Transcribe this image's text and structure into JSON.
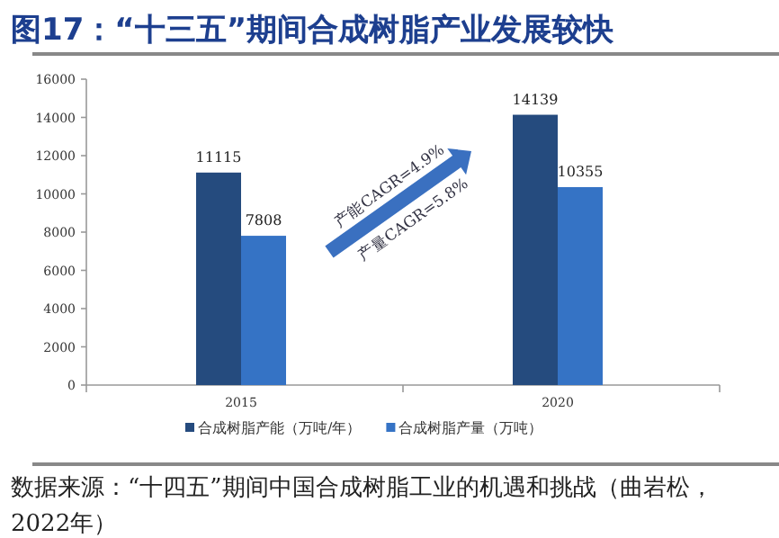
{
  "chart_data": {
    "type": "bar",
    "title": "图17：“十三五”期间合成树脂产业发展较快",
    "categories": [
      "2015",
      "2020"
    ],
    "series": [
      {
        "name": "合成树脂产能（万吨/年）",
        "color": "#254b7e",
        "values": [
          11115,
          14139
        ]
      },
      {
        "name": "合成树脂产量（万吨）",
        "color": "#3573c5",
        "values": [
          7808,
          10355
        ]
      }
    ],
    "ylim": [
      0,
      16000
    ],
    "yticks": [
      0,
      2000,
      4000,
      6000,
      8000,
      10000,
      12000,
      14000,
      16000
    ],
    "data_labels": true,
    "legend": "bottom",
    "grid": false,
    "annotations": [
      "产能CAGR=4.9%",
      "产量CAGR=5.8%",
      "数据来源：“十四五”期间中国合成树脂工业的机遇和挑战（曲岩松，2022年）"
    ]
  }
}
